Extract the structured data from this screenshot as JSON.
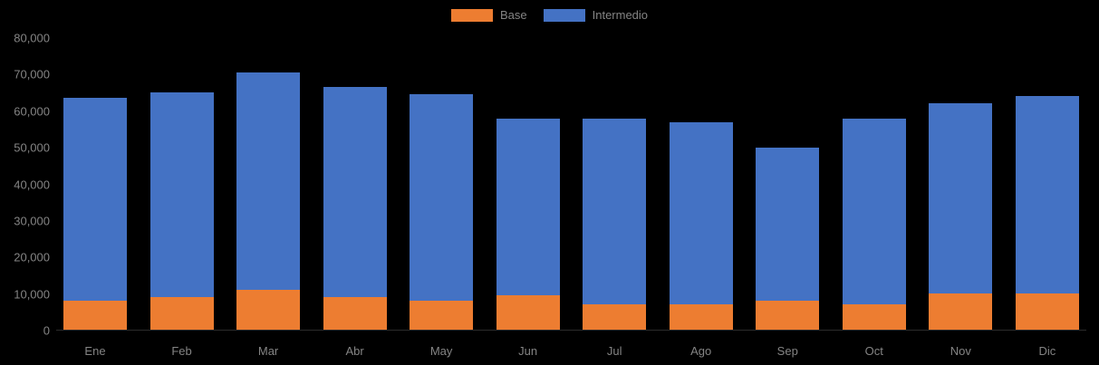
{
  "chart_data": {
    "type": "bar",
    "stacked": true,
    "title": "",
    "xlabel": "",
    "ylabel": "",
    "categories": [
      "Ene",
      "Feb",
      "Mar",
      "Abr",
      "May",
      "Jun",
      "Jul",
      "Ago",
      "Sep",
      "Oct",
      "Nov",
      "Dic"
    ],
    "series": [
      {
        "name": "Base",
        "color": "#ED7D31",
        "values": [
          8000,
          9000,
          11000,
          9000,
          8000,
          9500,
          7000,
          7000,
          8000,
          7000,
          10000,
          10000
        ]
      },
      {
        "name": "Intermedio",
        "color": "#4472C4",
        "values": [
          55500,
          56000,
          59500,
          57500,
          56500,
          48500,
          51000,
          50000,
          42000,
          51000,
          52000,
          54000
        ]
      }
    ],
    "totals": [
      63500,
      65000,
      70500,
      66500,
      64500,
      58000,
      58000,
      57000,
      50000,
      58000,
      62000,
      64000
    ],
    "y_axis": {
      "min": 0,
      "max": 80000,
      "step": 10000,
      "tick_labels": [
        "0",
        "10,000",
        "20,000",
        "30,000",
        "40,000",
        "50,000",
        "60,000",
        "70,000",
        "80,000"
      ]
    },
    "legend": {
      "position": "top",
      "entries": [
        "Base",
        "Intermedio"
      ]
    },
    "grid": false,
    "background_color": "#000000",
    "text_color": "#848484"
  }
}
